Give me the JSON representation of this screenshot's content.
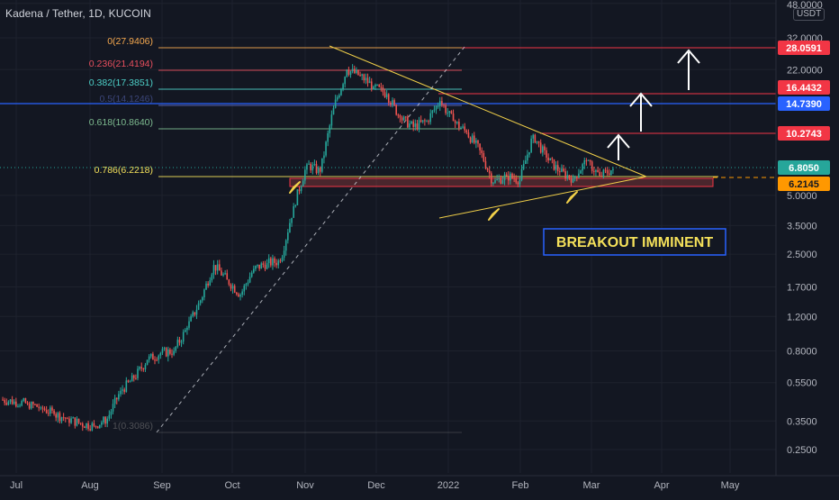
{
  "header": {
    "title": "Kadena / Tether, 1D, KUCOIN",
    "currency": "USDT"
  },
  "colors": {
    "background": "#131722",
    "candle_up": "#26a69a",
    "candle_down": "#ef5350",
    "fib_0": "#f5a84e",
    "fib_0236": "#e84f5e",
    "fib_0382": "#4dd0c8",
    "fib_05": "#5c6bc0",
    "fib_0618": "#7dba8f",
    "fib_0786": "#f4e05a",
    "fib_1": "#808080",
    "trendline": "#f1d049",
    "target_line": "#f23645",
    "price_label_current": "#26a69a",
    "price_label_support": "#ff9800",
    "blue_line": "#2962ff",
    "annotation_box_border": "#2962ff",
    "annotation_text": "#f4e05a"
  },
  "chart_data": {
    "type": "candlestick",
    "title": "Kadena / Tether, 1D, KUCOIN",
    "y_scale": "log",
    "y_axis_ticks": [
      "48.0000",
      "32.0000",
      "22.0000",
      "5.0000",
      "3.5000",
      "2.5000",
      "1.7000",
      "1.2000",
      "0.8000",
      "0.5500",
      "0.3500",
      "0.2500"
    ],
    "x_axis_ticks": [
      "Jul",
      "Aug",
      "Sep",
      "Oct",
      "Nov",
      "Dec",
      "2022",
      "Feb",
      "Mar",
      "Apr",
      "May"
    ],
    "price_labels": [
      {
        "value": "28.0591",
        "kind": "target"
      },
      {
        "value": "16.4432",
        "kind": "target"
      },
      {
        "value": "14.7390",
        "kind": "blue"
      },
      {
        "value": "10.2743",
        "kind": "target"
      },
      {
        "value": "6.8050",
        "kind": "current"
      },
      {
        "value": "6.2145",
        "kind": "support"
      }
    ],
    "fib_levels": [
      {
        "label": "0(27.9406)",
        "ratio": 0,
        "price": 27.9406
      },
      {
        "label": "0.236(21.4194)",
        "ratio": 0.236,
        "price": 21.4194
      },
      {
        "label": "0.382(17.3851)",
        "ratio": 0.382,
        "price": 17.3851
      },
      {
        "label": "0.5(14.1246)",
        "ratio": 0.5,
        "price": 14.1246
      },
      {
        "label": "0.618(10.8640)",
        "ratio": 0.618,
        "price": 10.864
      },
      {
        "label": "0.786(6.2218)",
        "ratio": 0.786,
        "price": 6.2218
      },
      {
        "label": "1(0.3086)",
        "ratio": 1,
        "price": 0.3086
      }
    ],
    "annotation": "BREAKOUT IMMINENT",
    "series": [
      {
        "type": "candlestick",
        "ohlc_weekly": [
          [
            0.45,
            0.47,
            0.42,
            0.44
          ],
          [
            0.44,
            0.46,
            0.41,
            0.43
          ],
          [
            0.43,
            0.44,
            0.39,
            0.41
          ],
          [
            0.41,
            0.42,
            0.37,
            0.38
          ],
          [
            0.38,
            0.4,
            0.34,
            0.36
          ],
          [
            0.36,
            0.37,
            0.32,
            0.34
          ],
          [
            0.34,
            0.36,
            0.31,
            0.33
          ],
          [
            0.33,
            0.37,
            0.32,
            0.36
          ],
          [
            0.36,
            0.52,
            0.35,
            0.5
          ],
          [
            0.5,
            0.62,
            0.46,
            0.58
          ],
          [
            0.58,
            0.75,
            0.55,
            0.72
          ],
          [
            0.72,
            0.86,
            0.65,
            0.78
          ],
          [
            0.78,
            0.84,
            0.7,
            0.8
          ],
          [
            0.8,
            1.1,
            0.78,
            1.05
          ],
          [
            1.05,
            1.55,
            1.0,
            1.45
          ],
          [
            1.45,
            2.55,
            1.4,
            2.2
          ],
          [
            2.2,
            2.35,
            1.7,
            1.85
          ],
          [
            1.85,
            2.0,
            1.45,
            1.55
          ],
          [
            1.55,
            2.25,
            1.5,
            2.1
          ],
          [
            2.1,
            2.4,
            1.9,
            2.25
          ],
          [
            2.25,
            2.5,
            2.05,
            2.3
          ],
          [
            2.3,
            4.8,
            2.25,
            4.4
          ],
          [
            4.4,
            7.9,
            4.2,
            7.2
          ],
          [
            7.2,
            8.2,
            5.2,
            6.6
          ],
          [
            6.6,
            15.0,
            6.4,
            14.0
          ],
          [
            14.0,
            28.0,
            13.0,
            22.0
          ],
          [
            22.0,
            24.5,
            19.0,
            20.5
          ],
          [
            20.5,
            21.0,
            17.0,
            18.0
          ],
          [
            18.0,
            19.5,
            15.5,
            16.5
          ],
          [
            16.5,
            17.5,
            11.0,
            12.5
          ],
          [
            12.5,
            14.0,
            10.0,
            11.2
          ],
          [
            11.2,
            13.5,
            10.5,
            12.0
          ],
          [
            12.0,
            16.0,
            11.5,
            15.2
          ],
          [
            15.2,
            16.0,
            11.5,
            12.0
          ],
          [
            12.0,
            12.8,
            10.0,
            10.5
          ],
          [
            10.5,
            11.0,
            8.0,
            8.5
          ],
          [
            8.5,
            8.8,
            4.9,
            5.8
          ],
          [
            5.8,
            6.8,
            5.1,
            6.3
          ],
          [
            6.3,
            7.0,
            5.5,
            6.0
          ],
          [
            6.0,
            10.8,
            5.9,
            10.2
          ],
          [
            10.2,
            10.5,
            7.4,
            7.8
          ],
          [
            7.8,
            8.2,
            6.3,
            6.6
          ],
          [
            6.6,
            7.2,
            5.6,
            6.1
          ],
          [
            6.1,
            7.9,
            5.9,
            7.5
          ],
          [
            7.5,
            7.6,
            6.0,
            6.3
          ],
          [
            6.3,
            7.0,
            6.1,
            6.81
          ]
        ]
      }
    ]
  }
}
